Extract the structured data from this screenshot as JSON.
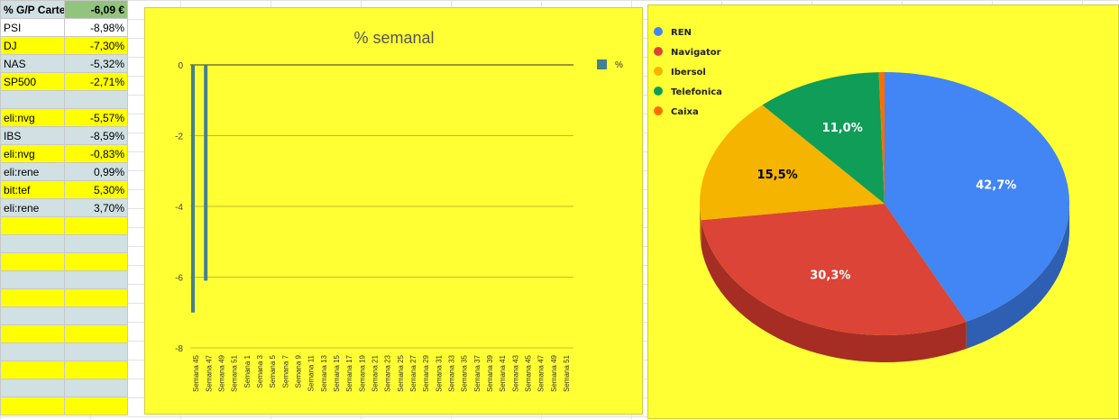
{
  "sheet": {
    "header": {
      "label": "% G/P Carte",
      "value": "-6,09 €"
    },
    "rows": [
      {
        "label": "PSI",
        "value": "-8,98%",
        "bg": "#ffffff"
      },
      {
        "label": "DJ",
        "value": "-7,30%",
        "bg": "#ffff00"
      },
      {
        "label": "NAS",
        "value": "-5,32%",
        "bg": "#d0e0e3"
      },
      {
        "label": "SP500",
        "value": "-2,71%",
        "bg": "#ffff00"
      },
      {
        "label": "",
        "value": "",
        "bg": "#d0e0e3"
      },
      {
        "label": "eli:nvg",
        "value": "-5,57%",
        "bg": "#ffff00"
      },
      {
        "label": "IBS",
        "value": "-8,59%",
        "bg": "#d0e0e3"
      },
      {
        "label": "eli:nvg",
        "value": "-0,83%",
        "bg": "#ffff00"
      },
      {
        "label": "eli:rene",
        "value": "0,99%",
        "bg": "#d0e0e3"
      },
      {
        "label": "bit:tef",
        "value": "5,30%",
        "bg": "#ffff00"
      },
      {
        "label": "eli:rene",
        "value": "3,70%",
        "bg": "#d0e0e3"
      },
      {
        "label": "",
        "value": "",
        "bg": "#ffff00"
      },
      {
        "label": "",
        "value": "",
        "bg": "#d0e0e3"
      },
      {
        "label": "",
        "value": "",
        "bg": "#ffff00"
      },
      {
        "label": "",
        "value": "",
        "bg": "#d0e0e3"
      },
      {
        "label": "",
        "value": "",
        "bg": "#ffff00"
      },
      {
        "label": "",
        "value": "",
        "bg": "#d0e0e3"
      },
      {
        "label": "",
        "value": "",
        "bg": "#ffff00"
      },
      {
        "label": "",
        "value": "",
        "bg": "#d0e0e3"
      },
      {
        "label": "",
        "value": "",
        "bg": "#ffff00"
      },
      {
        "label": "",
        "value": "",
        "bg": "#d0e0e3"
      },
      {
        "label": "",
        "value": "",
        "bg": "#ffff00"
      }
    ]
  },
  "chart_data": [
    {
      "type": "bar",
      "title": "% semanal",
      "legend": {
        "position": "top-right"
      },
      "grid": true,
      "ylim": [
        -8,
        0
      ],
      "yticks": [
        0,
        -2,
        -4,
        -6,
        -8
      ],
      "categories": [
        "Semana 45",
        "Semana 47",
        "Semana 49",
        "Semana 51",
        "Semana 1",
        "Semana 3",
        "Semana 5",
        "Semana 7",
        "Semana 9",
        "Semana 11",
        "Semana 13",
        "Semana 15",
        "Semana 17",
        "Semana 19",
        "Semana 21",
        "Semana 23",
        "Semana 25",
        "Semana 27",
        "Semana 29",
        "Semana 31",
        "Semana 33",
        "Semana 35",
        "Semana 37",
        "Semana 39",
        "Semana 41",
        "Semana 43",
        "Semana 45",
        "Semana 47",
        "Semana 49",
        "Semana 51"
      ],
      "series": [
        {
          "name": "%",
          "color": "#45818e",
          "values": [
            -7.0,
            -6.1,
            0,
            0,
            0,
            0,
            0,
            0,
            0,
            0,
            0,
            0,
            0,
            0,
            0,
            0,
            0,
            0,
            0,
            0,
            0,
            0,
            0,
            0,
            0,
            0,
            0,
            0,
            0,
            0
          ]
        }
      ]
    },
    {
      "type": "pie",
      "is3d": true,
      "legend": {
        "position": "top-left"
      },
      "slices": [
        {
          "label": "REN",
          "value": 42.7,
          "display": "42,7%",
          "color": "#4285f4",
          "side": "#2f5fb3"
        },
        {
          "label": "Navigator",
          "value": 30.3,
          "display": "30,3%",
          "color": "#db4437",
          "side": "#a52d24"
        },
        {
          "label": "Ibersol",
          "value": 15.5,
          "display": "15,5%",
          "color": "#f4b400",
          "side": "#b88700"
        },
        {
          "label": "Telefonica",
          "value": 11.0,
          "display": "11,0%",
          "color": "#0f9d58",
          "side": "#0a6e3e"
        },
        {
          "label": "Caixa",
          "value": 0.5,
          "display": "",
          "color": "#ff6d00",
          "side": "#c05200"
        }
      ]
    }
  ]
}
